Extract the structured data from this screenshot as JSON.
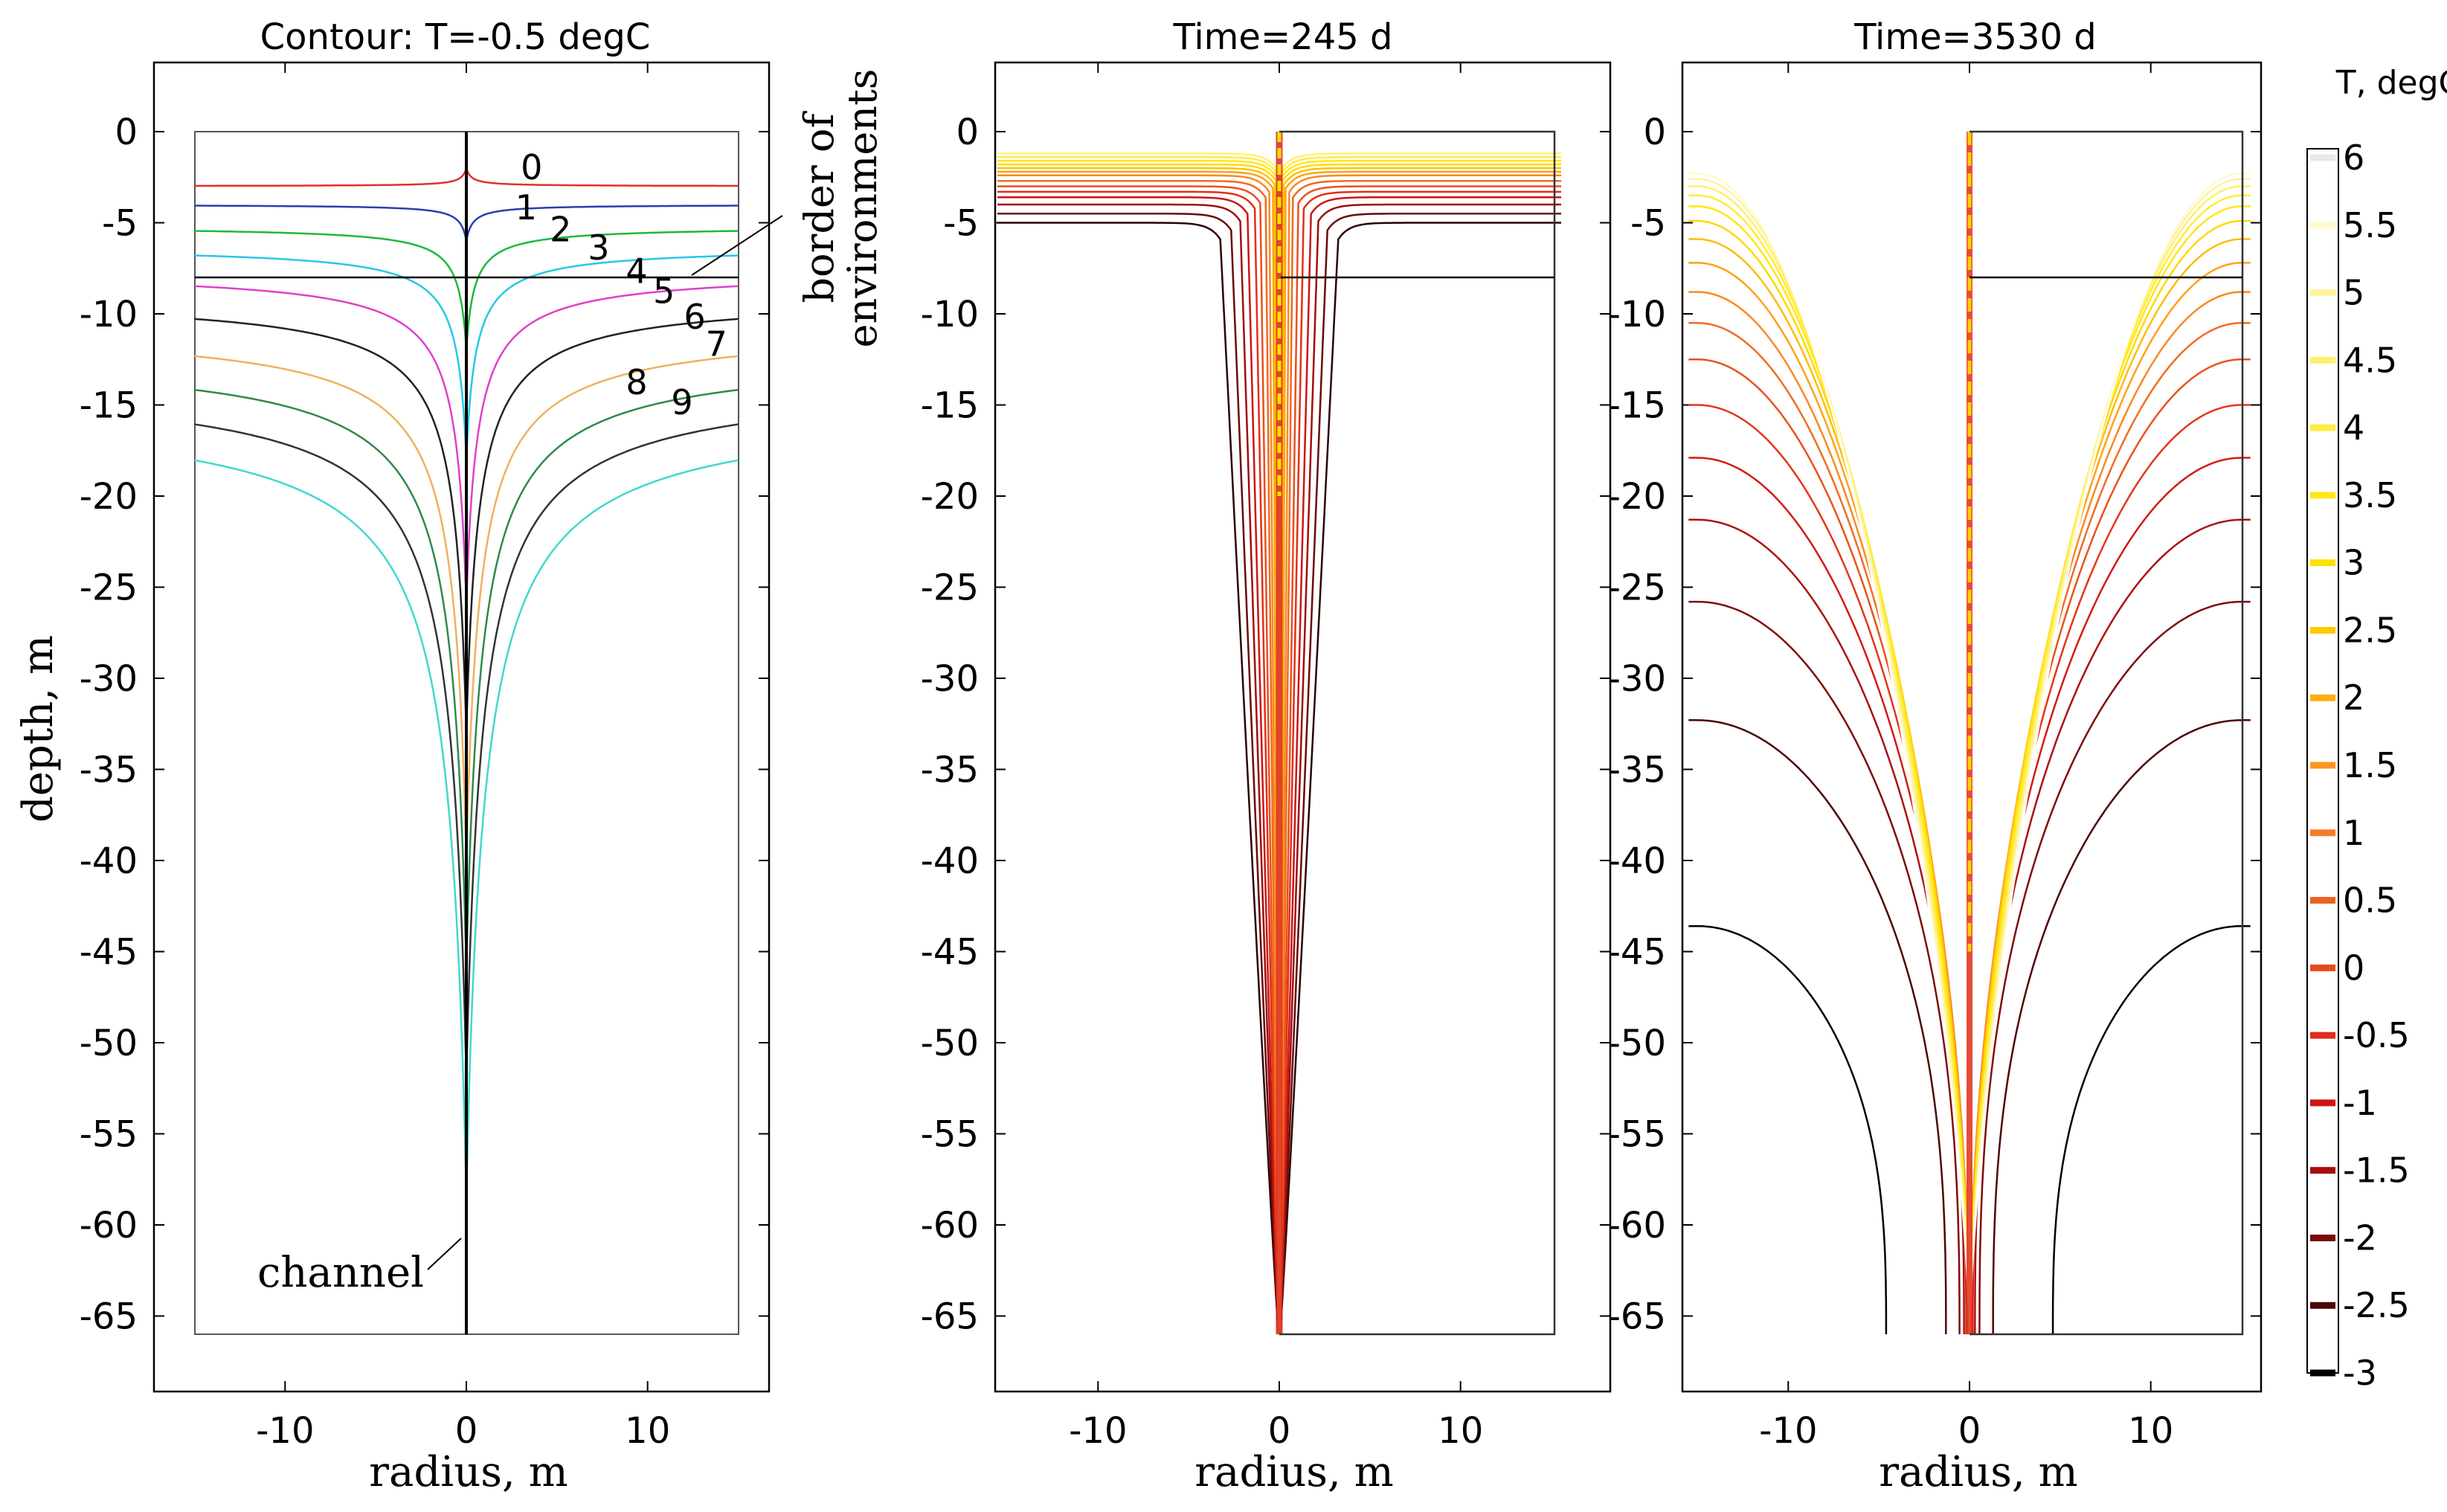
{
  "chart_data": [
    {
      "type": "line",
      "title": "Contour: T=-0.5 degC",
      "xlabel": "radius, m",
      "ylabel": "depth, m",
      "xlim": [
        -17,
        17
      ],
      "ylim": [
        -69,
        3
      ],
      "x_ticks": [
        -10,
        0,
        10
      ],
      "y_ticks": [
        0,
        -5,
        -10,
        -15,
        -20,
        -25,
        -30,
        -35,
        -40,
        -45,
        -50,
        -55,
        -60,
        -65
      ],
      "domain": {
        "r": [
          -15,
          15
        ],
        "depth": [
          -66,
          0
        ]
      },
      "border_depth": -8,
      "channel_bottom": -66,
      "annotations": [
        "border of",
        "environments",
        "channel"
      ],
      "series": [
        {
          "name": "0",
          "color": "#e0302b",
          "far_depth": -3.0,
          "tip_depth": -2.0
        },
        {
          "name": "1",
          "color": "#2b3fae",
          "far_depth": -4.0,
          "tip_depth": -6.0
        },
        {
          "name": "2",
          "color": "#1fb83c",
          "far_depth": -5.2,
          "tip_depth": -12.0
        },
        {
          "name": "3",
          "color": "#26c8e6",
          "far_depth": -6.3,
          "tip_depth": -18.0
        },
        {
          "name": "4",
          "color": "#e040c8",
          "far_depth": -7.6,
          "tip_depth": -26.0
        },
        {
          "name": "5",
          "color": "#222222",
          "far_depth": -9.0,
          "tip_depth": -33.0
        },
        {
          "name": "6",
          "color": "#f0b060",
          "far_depth": -10.6,
          "tip_depth": -40.0
        },
        {
          "name": "7",
          "color": "#2e8a4a",
          "far_depth": -12.0,
          "tip_depth": -46.0
        },
        {
          "name": "8",
          "color": "#333333",
          "far_depth": -13.4,
          "tip_depth": -52.0
        },
        {
          "name": "9",
          "color": "#40d8d0",
          "far_depth": -14.8,
          "tip_depth": -58.5
        }
      ]
    },
    {
      "type": "line",
      "title": "Time=245 d",
      "xlabel": "radius, m",
      "ylabel": "",
      "xlim": [
        -17,
        17
      ],
      "ylim": [
        -69,
        3
      ],
      "x_ticks": [
        -10,
        0,
        10
      ],
      "y_ticks": [
        0,
        -5,
        -10,
        -15,
        -20,
        -25,
        -30,
        -35,
        -40,
        -45,
        -50,
        -55,
        -60,
        -65
      ],
      "contour_levels_degC": [
        -3,
        -2.5,
        -2,
        -1.5,
        -1,
        -0.5,
        0,
        0.5,
        1,
        1.5,
        2,
        2.5,
        3,
        3.5,
        4,
        4.5,
        5,
        5.5,
        6
      ],
      "isotherm_far_depths": [
        -5.0,
        -4.5,
        -4.0,
        -3.6,
        -3.3,
        -3.0,
        -2.7,
        -2.4,
        -2.2,
        -2.0,
        -1.8,
        -1.6,
        -1.4,
        -1.2
      ],
      "isotherm_near_r": [
        3.2,
        2.6,
        2.1,
        1.7,
        1.3,
        1.0,
        0.7,
        0.5,
        0.3,
        0.2,
        0.12,
        0.08,
        0.05,
        0.03
      ]
    },
    {
      "type": "line",
      "title": "Time=3530 d",
      "xlabel": "radius, m",
      "ylabel": "",
      "xlim": [
        -17,
        17
      ],
      "ylim": [
        -69,
        3
      ],
      "x_ticks": [
        -10,
        0,
        10
      ],
      "y_ticks": [
        0,
        -5,
        -10,
        -15,
        -20,
        -25,
        -30,
        -35,
        -40,
        -45,
        -50,
        -55,
        -60,
        -65
      ],
      "isotherm_far_depths": [
        -43.6,
        -32.3,
        -25.8,
        -21.3,
        -17.9,
        -15.0,
        -12.5,
        -10.5,
        -8.8,
        -7.2,
        -5.9,
        -4.9,
        -4.1,
        -3.5,
        -3.0,
        -2.6,
        -2.3,
        -2.0
      ],
      "isotherm_bottom_r": [
        4.6,
        1.3,
        0.55,
        0.3,
        0.18,
        0.12,
        0.08,
        0.05,
        0.035,
        0.025,
        0.02,
        0.015,
        0.01,
        0.008,
        0.006,
        0.005,
        0.004,
        0.003
      ]
    }
  ],
  "colorbar": {
    "title": "T, degC",
    "labels": [
      "6",
      "5.5",
      "5",
      "4.5",
      "4",
      "3.5",
      "3",
      "2.5",
      "2",
      "1.5",
      "1",
      "0.5",
      "0",
      "-0.5",
      "-1",
      "-1.5",
      "-2",
      "-2.5",
      "-3"
    ],
    "values": [
      6,
      5.5,
      5,
      4.5,
      4,
      3.5,
      3,
      2.5,
      2,
      1.5,
      1,
      0.5,
      0,
      -0.5,
      -1,
      -1.5,
      -2,
      -2.5,
      -3
    ],
    "colors": [
      "#ffffff",
      "#fffad0",
      "#fff3a0",
      "#fff070",
      "#ffec40",
      "#ffe81a",
      "#ffe000",
      "#ffc800",
      "#ffac10",
      "#ff9520",
      "#f57d25",
      "#ec6220",
      "#e84a1c",
      "#e22d18",
      "#d01414",
      "#a60f0f",
      "#7a0a0a",
      "#4a0505",
      "#000000"
    ]
  }
}
